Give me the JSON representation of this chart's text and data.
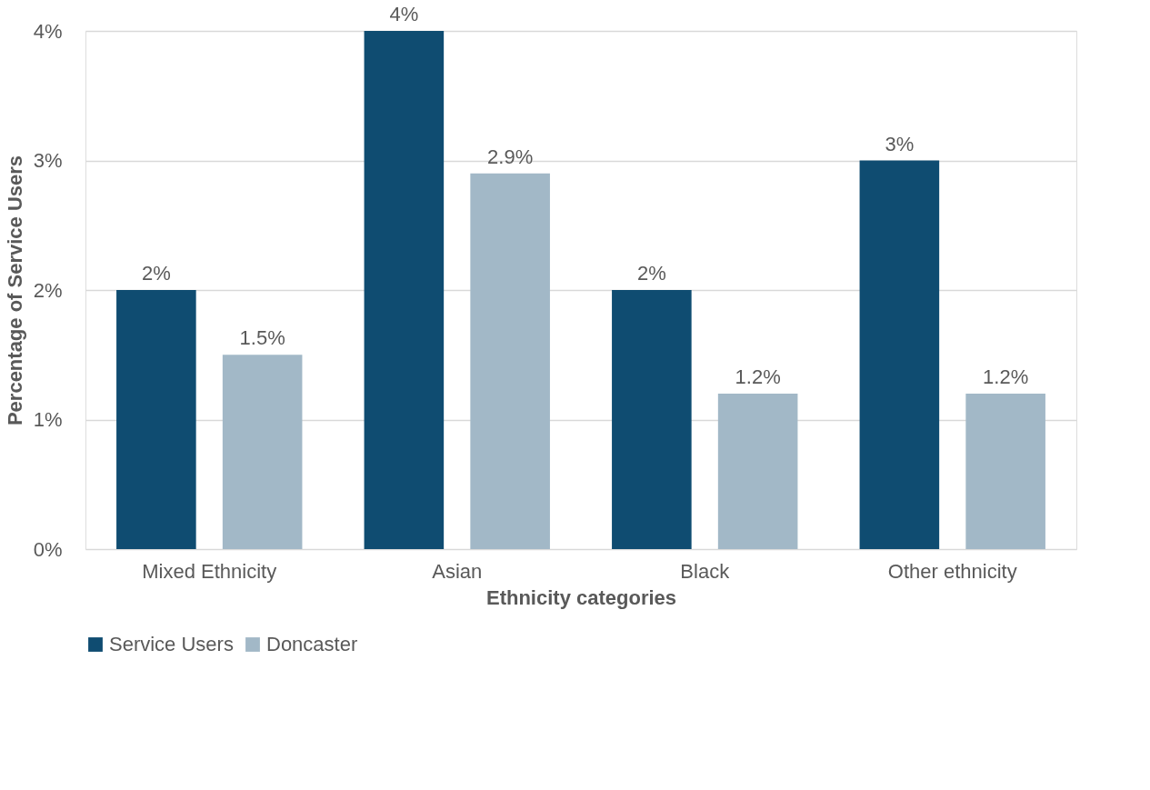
{
  "chart_data": {
    "type": "bar",
    "xlabel": "Ethnicity categories",
    "ylabel": "Percentage of Service Users",
    "categories": [
      "Mixed Ethnicity",
      "Asian",
      "Black",
      "Other ethnicity"
    ],
    "series": [
      {
        "name": "Service Users",
        "color": "#0f4c71",
        "values": [
          2,
          4,
          2,
          3
        ],
        "value_labels": [
          "2%",
          "4%",
          "2%",
          "3%"
        ]
      },
      {
        "name": "Doncaster",
        "color": "#a2b8c7",
        "values": [
          1.5,
          2.9,
          1.2,
          1.2
        ],
        "value_labels": [
          "1.5%",
          "2.9%",
          "1.2%",
          "1.2%"
        ]
      }
    ],
    "ylim": [
      0,
      4
    ],
    "yticks": [
      {
        "value": 0,
        "label": "0%"
      },
      {
        "value": 1,
        "label": "1%"
      },
      {
        "value": 2,
        "label": "2%"
      },
      {
        "value": 3,
        "label": "3%"
      },
      {
        "value": 4,
        "label": "4%"
      }
    ],
    "grid": "y",
    "legend": "bottom"
  }
}
